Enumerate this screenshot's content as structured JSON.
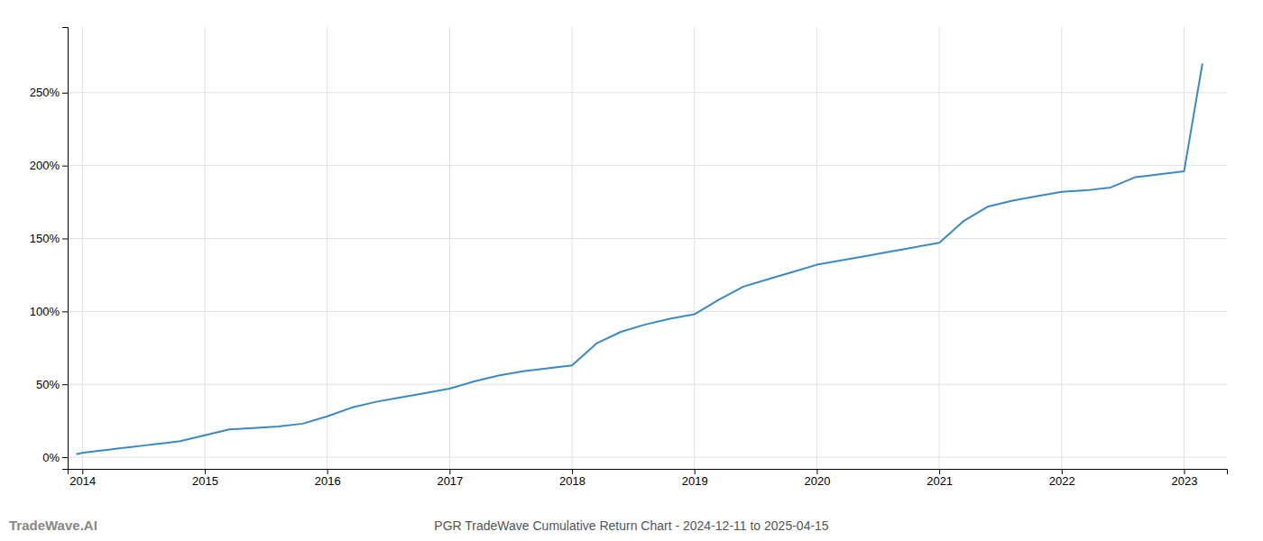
{
  "chart_data": {
    "type": "line",
    "title": "PGR TradeWave Cumulative Return Chart - 2024-12-11 to 2025-04-15",
    "annotations": [
      "TradeWave.AI"
    ],
    "x": [
      2013.95,
      2014.0,
      2014.1,
      2014.2,
      2014.3,
      2014.4,
      2014.5,
      2014.6,
      2014.7,
      2014.8,
      2014.9,
      2015.0,
      2015.1,
      2015.2,
      2015.4,
      2015.6,
      2015.8,
      2016.0,
      2016.2,
      2016.4,
      2016.6,
      2016.8,
      2017.0,
      2017.2,
      2017.4,
      2017.6,
      2017.8,
      2018.0,
      2018.2,
      2018.4,
      2018.6,
      2018.8,
      2019.0,
      2019.2,
      2019.4,
      2019.6,
      2019.8,
      2020.0,
      2020.2,
      2020.4,
      2020.6,
      2020.8,
      2021.0,
      2021.2,
      2021.4,
      2021.6,
      2021.8,
      2022.0,
      2022.2,
      2022.4,
      2022.6,
      2022.8,
      2023.0,
      2023.15
    ],
    "series": [
      {
        "color": "#3a8abf",
        "values": [
          2,
          3,
          4,
          5,
          6,
          7,
          8,
          9,
          10,
          11,
          13,
          15,
          17,
          19,
          20,
          21,
          23,
          28,
          34,
          38,
          41,
          44,
          47,
          52,
          56,
          59,
          61,
          63,
          78,
          86,
          91,
          95,
          98,
          108,
          117,
          122,
          127,
          132,
          135,
          138,
          141,
          144,
          147,
          162,
          172,
          176,
          179,
          182,
          183,
          185,
          192,
          194,
          196,
          270
        ]
      }
    ],
    "xlim": [
      2013.88,
      2023.35
    ],
    "xticks": [
      2014,
      2015,
      2016,
      2017,
      2018,
      2019,
      2020,
      2021,
      2022,
      2023
    ],
    "ylim": [
      -8,
      295
    ],
    "yticks": [
      {
        "value": 0,
        "label": "0%"
      },
      {
        "value": 50,
        "label": "50%"
      },
      {
        "value": 100,
        "label": "100%"
      },
      {
        "value": 150,
        "label": "150%"
      },
      {
        "value": 200,
        "label": "200%"
      },
      {
        "value": 250,
        "label": "250%"
      }
    ],
    "grid": true
  }
}
